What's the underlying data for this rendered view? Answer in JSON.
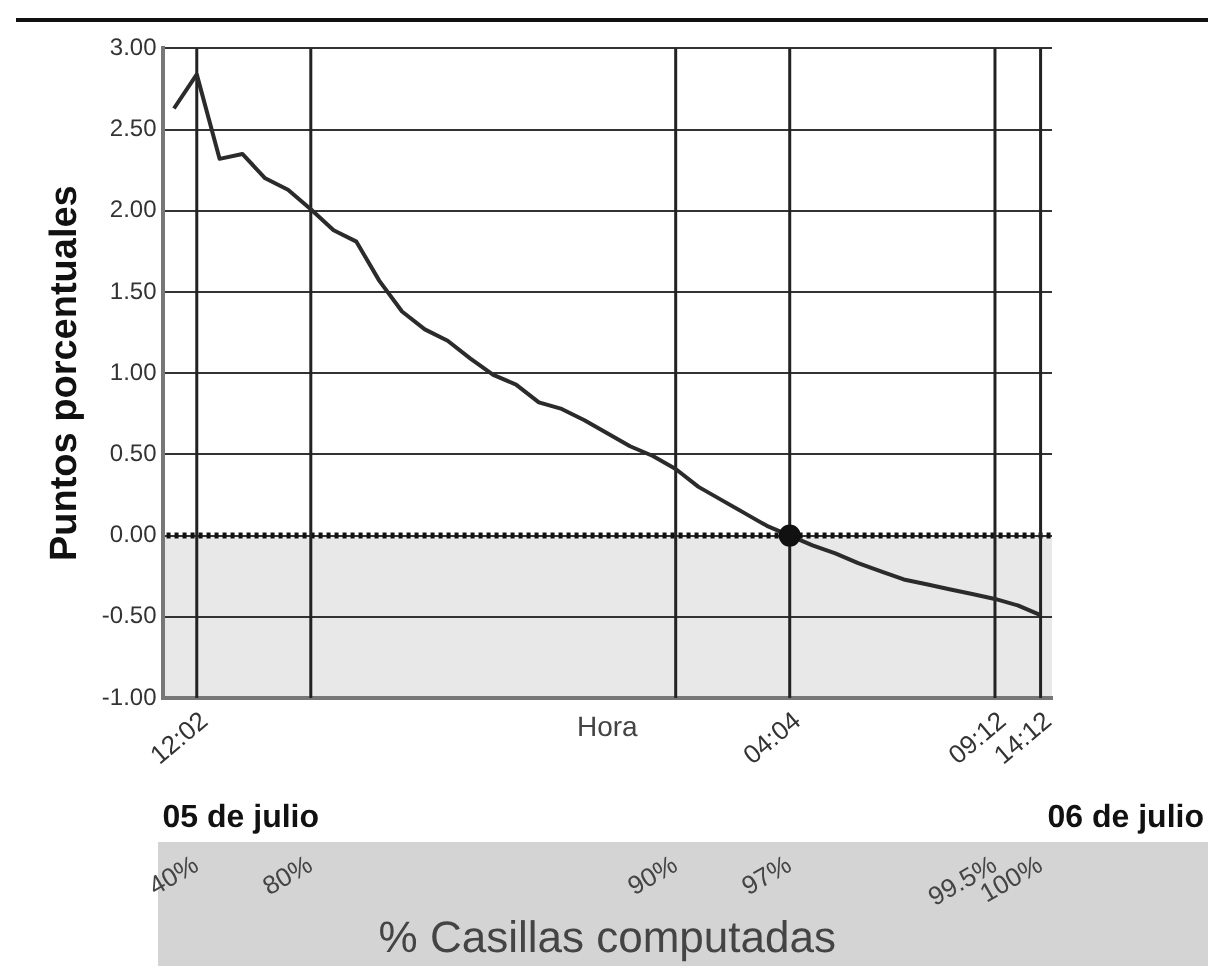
{
  "chart_data": {
    "type": "line",
    "ylabel": "Puntos porcentuales",
    "xlabel": "% Casillas computadas",
    "categories": [
      null,
      "40%",
      null,
      null,
      null,
      null,
      "80%",
      null,
      null,
      null,
      null,
      null,
      null,
      null,
      null,
      null,
      null,
      null,
      null,
      null,
      null,
      null,
      "90%",
      null,
      null,
      null,
      null,
      "97%",
      null,
      null,
      null,
      null,
      null,
      null,
      null,
      null,
      "99.5%",
      null,
      "100%"
    ],
    "annotations": [
      "Hora",
      "05 de julio",
      "06 de julio"
    ],
    "ylim": [
      -1,
      3
    ],
    "yticks": [
      {
        "value": 3,
        "label": "3.00"
      },
      {
        "value": 2.5,
        "label": "2.50"
      },
      {
        "value": 2,
        "label": "2.00"
      },
      {
        "value": 1.5,
        "label": "1.50"
      },
      {
        "value": 1,
        "label": "1.00"
      },
      {
        "value": 0.5,
        "label": "0.50"
      },
      {
        "value": 0,
        "label": "0.00"
      },
      {
        "value": -0.5,
        "label": "-0.50"
      },
      {
        "value": -1,
        "label": "-1.00"
      }
    ],
    "grid": "y",
    "ref_lines": [
      {
        "axis": "y",
        "value": 0,
        "color": "#111111",
        "line_style": "dotted"
      },
      {
        "axis": "x",
        "value": "40%",
        "label": "12:02",
        "color": "#222222"
      },
      {
        "axis": "x",
        "value": "80%",
        "color": "#222222"
      },
      {
        "axis": "x",
        "value": "90%",
        "color": "#222222"
      },
      {
        "axis": "x",
        "value": "97%",
        "label": "04:04",
        "color": "#222222"
      },
      {
        "axis": "x",
        "value": "99.5%",
        "label": "09:12",
        "color": "#222222"
      },
      {
        "axis": "x",
        "value": "100%",
        "label": "14:12",
        "color": "#222222"
      }
    ],
    "bands": [
      {
        "axis": "y",
        "from": -1,
        "to": 0,
        "color": "#e8e8e8"
      }
    ],
    "series": [
      {
        "color": "#2b2b2b",
        "marker": "none",
        "values": [
          2.63,
          2.84,
          2.32,
          2.35,
          2.2,
          2.13,
          2.01,
          1.88,
          1.81,
          1.57,
          1.38,
          1.27,
          1.2,
          1.09,
          0.99,
          0.93,
          0.82,
          0.78,
          0.71,
          0.63,
          0.55,
          0.49,
          0.41,
          0.3,
          0.22,
          0.14,
          0.06,
          0.0,
          -0.06,
          -0.11,
          -0.17,
          -0.22,
          -0.27,
          -0.3,
          -0.33,
          -0.36,
          -0.39,
          -0.43,
          -0.49
        ]
      },
      {
        "type": "scatter",
        "color": "#111111",
        "marker": "circle",
        "x": [
          "97%"
        ],
        "values": [
          0
        ]
      }
    ]
  }
}
